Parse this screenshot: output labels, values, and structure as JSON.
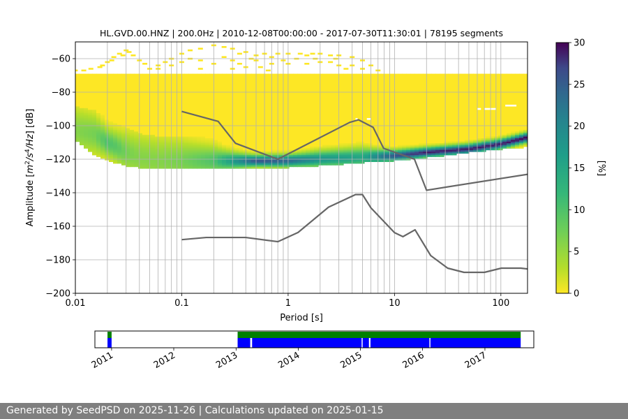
{
  "footer": {
    "text": "Generated by SeedPSD on 2025-11-26 | Calculations updated on 2025-01-15"
  },
  "chart_data": [
    {
      "type": "heatmap",
      "title": "HL.GVD.00.HNZ | 200.0Hz | 2010-12-08T00:00:00 - 2017-07-30T11:30:01 | 78195 segments",
      "xlabel": "Period [s]",
      "ylabel_parts": [
        "Amplitude [",
        "m",
        "2",
        "/",
        "s",
        "4",
        "/",
        "Hz",
        "] [dB]"
      ],
      "x_scale": "log",
      "xlim": [
        0.01,
        178
      ],
      "ylim": [
        -200,
        -50
      ],
      "x_ticks": [
        {
          "value": 0.01,
          "label": "0.01"
        },
        {
          "value": 0.1,
          "label": "0.1"
        },
        {
          "value": 1,
          "label": "1"
        },
        {
          "value": 10,
          "label": "10"
        },
        {
          "value": 100,
          "label": "100"
        }
      ],
      "y_ticks": [
        {
          "value": -60,
          "label": "−60"
        },
        {
          "value": -80,
          "label": "−80"
        },
        {
          "value": -100,
          "label": "−100"
        },
        {
          "value": -120,
          "label": "−120"
        },
        {
          "value": -140,
          "label": "−140"
        },
        {
          "value": -160,
          "label": "−160"
        },
        {
          "value": -180,
          "label": "−180"
        },
        {
          "value": -200,
          "label": "−200"
        }
      ],
      "grid_periods": [
        0.02,
        0.03,
        0.04,
        0.05,
        0.06,
        0.07,
        0.08,
        0.09,
        0.1,
        0.2,
        0.3,
        0.4,
        0.5,
        0.6,
        0.7,
        0.8,
        0.9,
        1,
        2,
        3,
        4,
        5,
        6,
        7,
        8,
        9,
        10,
        20,
        30,
        40,
        50,
        60,
        70,
        80,
        90,
        100
      ],
      "grid_db": [
        -60,
        -80,
        -100,
        -120,
        -140,
        -160,
        -180
      ],
      "colormap": "viridis_r",
      "colorbar": {
        "label": "[%]",
        "min": 0,
        "max": 30,
        "ticks": [
          {
            "value": 0,
            "label": "0"
          },
          {
            "value": 5,
            "label": "5"
          },
          {
            "value": 10,
            "label": "10"
          },
          {
            "value": 15,
            "label": "15"
          },
          {
            "value": 20,
            "label": "20"
          },
          {
            "value": 25,
            "label": "25"
          },
          {
            "value": 30,
            "label": "30"
          }
        ]
      },
      "density_ridge": {
        "periods": [
          0.01,
          0.015,
          0.02,
          0.025,
          0.03,
          0.04,
          0.06,
          0.1,
          0.2,
          0.5,
          1,
          2,
          5,
          10,
          20,
          50,
          100,
          178
        ],
        "mode_db": [
          -103,
          -105,
          -110,
          -113,
          -116,
          -119,
          -121,
          -121,
          -121,
          -121,
          -121,
          -120,
          -119,
          -118,
          -116,
          -114,
          -111,
          -107
        ],
        "peak_percent": [
          6,
          7,
          10,
          9,
          7,
          6,
          6,
          7,
          10,
          26,
          24,
          18,
          15,
          26,
          29,
          29,
          29,
          30
        ]
      },
      "coverage_band": {
        "periods": [
          0.01,
          0.012,
          0.015,
          0.02,
          0.03,
          0.04,
          0.06,
          0.1,
          0.2,
          0.5,
          1,
          2,
          5,
          10,
          20,
          30,
          50,
          100,
          178
        ],
        "top_db": [
          -69,
          -69,
          -69,
          -69,
          -69,
          -69,
          -69,
          -69,
          -69,
          -69,
          -69,
          -69,
          -69,
          -69,
          -69,
          -69,
          -69,
          -69,
          -69
        ],
        "bottom_db": [
          -108,
          -112,
          -116,
          -120,
          -123,
          -124,
          -124,
          -124,
          -124,
          -124,
          -124,
          -123,
          -121,
          -120,
          -118,
          -117,
          -115,
          -113,
          -112
        ]
      },
      "sparse_points": [
        {
          "period": 0.01,
          "db": -67
        },
        {
          "period": 0.012,
          "db": -67
        },
        {
          "period": 0.017,
          "db": -65
        },
        {
          "period": 0.02,
          "db": -62
        },
        {
          "period": 0.023,
          "db": -59
        },
        {
          "period": 0.026,
          "db": -57
        },
        {
          "period": 0.03,
          "db": -55
        },
        {
          "period": 0.035,
          "db": -58
        },
        {
          "period": 0.04,
          "db": -61
        },
        {
          "period": 0.045,
          "db": -63
        },
        {
          "period": 0.05,
          "db": -66
        },
        {
          "period": 0.06,
          "db": -64
        },
        {
          "period": 0.07,
          "db": -62
        },
        {
          "period": 0.08,
          "db": -60
        },
        {
          "period": 0.1,
          "db": -57
        },
        {
          "period": 0.12,
          "db": -55
        },
        {
          "period": 0.15,
          "db": -54
        },
        {
          "period": 0.2,
          "db": -52
        },
        {
          "period": 0.25,
          "db": -53
        },
        {
          "period": 0.3,
          "db": -54
        },
        {
          "period": 0.4,
          "db": -56
        },
        {
          "period": 0.5,
          "db": -58
        },
        {
          "period": 0.6,
          "db": -57
        },
        {
          "period": 0.8,
          "db": -57
        },
        {
          "period": 1,
          "db": -57
        },
        {
          "period": 1.3,
          "db": -57
        },
        {
          "period": 1.7,
          "db": -57
        },
        {
          "period": 2,
          "db": -57
        },
        {
          "period": 0.25,
          "db": -59
        },
        {
          "period": 0.3,
          "db": -61
        },
        {
          "period": 0.35,
          "db": -63
        },
        {
          "period": 0.4,
          "db": -65
        },
        {
          "period": 0.08,
          "db": -64
        },
        {
          "period": 0.06,
          "db": -66
        },
        {
          "period": 0.1,
          "db": -62
        },
        {
          "period": 0.12,
          "db": -60
        },
        {
          "period": 0.15,
          "db": -61
        },
        {
          "period": 0.5,
          "db": -61
        },
        {
          "period": 0.7,
          "db": -63
        },
        {
          "period": 1,
          "db": -63
        },
        {
          "period": 1.5,
          "db": -63
        },
        {
          "period": 2,
          "db": -62
        },
        {
          "period": 2.5,
          "db": -62
        },
        {
          "period": 3,
          "db": -64
        },
        {
          "period": 3.5,
          "db": -66
        },
        {
          "period": 0.2,
          "db": -63
        },
        {
          "period": 0.7,
          "db": -59
        },
        {
          "period": 0.9,
          "db": -61
        },
        {
          "period": 1.2,
          "db": -60
        },
        {
          "period": 2.5,
          "db": -58
        },
        {
          "period": 3,
          "db": -58
        },
        {
          "period": 4,
          "db": -59
        },
        {
          "period": 5,
          "db": -61
        },
        {
          "period": 6,
          "db": -64
        },
        {
          "period": 7,
          "db": -67
        },
        {
          "period": 1.5,
          "db": -58
        },
        {
          "period": 0.35,
          "db": -57
        },
        {
          "period": 0.15,
          "db": -66
        },
        {
          "period": 0.3,
          "db": -66
        },
        {
          "period": 0.45,
          "db": -60
        },
        {
          "period": 1.8,
          "db": -60
        },
        {
          "period": 4,
          "db": -64
        },
        {
          "period": 5,
          "db": -66
        },
        {
          "period": 0.018,
          "db": -64
        },
        {
          "period": 0.022,
          "db": -61
        },
        {
          "period": 0.028,
          "db": -58
        },
        {
          "period": 0.032,
          "db": -56
        },
        {
          "period": 0.014,
          "db": -66
        },
        {
          "period": 0.55,
          "db": -65
        },
        {
          "period": 0.65,
          "db": -67
        },
        {
          "period": 2.8,
          "db": -60
        }
      ],
      "extra_patches": [
        {
          "period_start": 4.3,
          "period_end": 4.5,
          "db": -96
        },
        {
          "period_start": 5.5,
          "period_end": 6,
          "db": -96
        },
        {
          "period_start": 60,
          "period_end": 65,
          "db": -90
        },
        {
          "period_start": 70,
          "period_end": 90,
          "db": -90
        },
        {
          "period_start": 110,
          "period_end": 140,
          "db": -88
        }
      ],
      "noise_models": [
        {
          "name": "high",
          "periods": [
            0.1,
            0.22,
            0.32,
            0.8,
            3.8,
            4.6,
            6.3,
            7.9,
            15.4,
            20,
            354.8
          ],
          "db": [
            -91.5,
            -97.4,
            -110.5,
            -120,
            -98,
            -96.5,
            -101,
            -113.5,
            -120,
            -138.5,
            -126
          ]
        },
        {
          "name": "low",
          "periods": [
            0.1,
            0.17,
            0.4,
            0.8,
            1.24,
            2.4,
            4.3,
            5,
            6,
            10,
            12,
            15.6,
            21.9,
            31.6,
            45,
            70,
            101,
            154,
            328,
            600
          ],
          "db": [
            -168,
            -166.7,
            -166.7,
            -169.2,
            -163.7,
            -148.6,
            -141.1,
            -141.1,
            -149,
            -163.8,
            -166.2,
            -162.1,
            -177.5,
            -185,
            -187.5,
            -187.5,
            -185,
            -185,
            -187.5,
            -184.4
          ]
        }
      ],
      "noise_model_color": "#666666"
    },
    {
      "type": "timeline",
      "x_ticks": [
        {
          "value": "2011-01-01",
          "label": "2011"
        },
        {
          "value": "2012-01-01",
          "label": "2012"
        },
        {
          "value": "2013-01-01",
          "label": "2013"
        },
        {
          "value": "2014-01-01",
          "label": "2014"
        },
        {
          "value": "2015-01-01",
          "label": "2015"
        },
        {
          "value": "2016-01-01",
          "label": "2016"
        },
        {
          "value": "2017-01-01",
          "label": "2017"
        }
      ],
      "xlim": [
        "2010-09-25",
        "2017-10-15"
      ],
      "green_spans": [
        {
          "start": "2010-12-08",
          "end": "2011-01-01"
        },
        {
          "start": "2013-01-10",
          "end": "2017-07-30"
        }
      ],
      "blue_spans": [
        {
          "start": "2010-12-08",
          "end": "2011-01-01"
        },
        {
          "start": "2013-01-10",
          "end": "2013-03-25"
        },
        {
          "start": "2013-04-05",
          "end": "2015-01-08"
        },
        {
          "start": "2015-01-14",
          "end": "2015-02-20"
        },
        {
          "start": "2015-03-01",
          "end": "2016-02-10"
        },
        {
          "start": "2016-02-16",
          "end": "2017-07-30"
        }
      ],
      "green_color": "#008000",
      "blue_color": "#0000ff"
    }
  ]
}
